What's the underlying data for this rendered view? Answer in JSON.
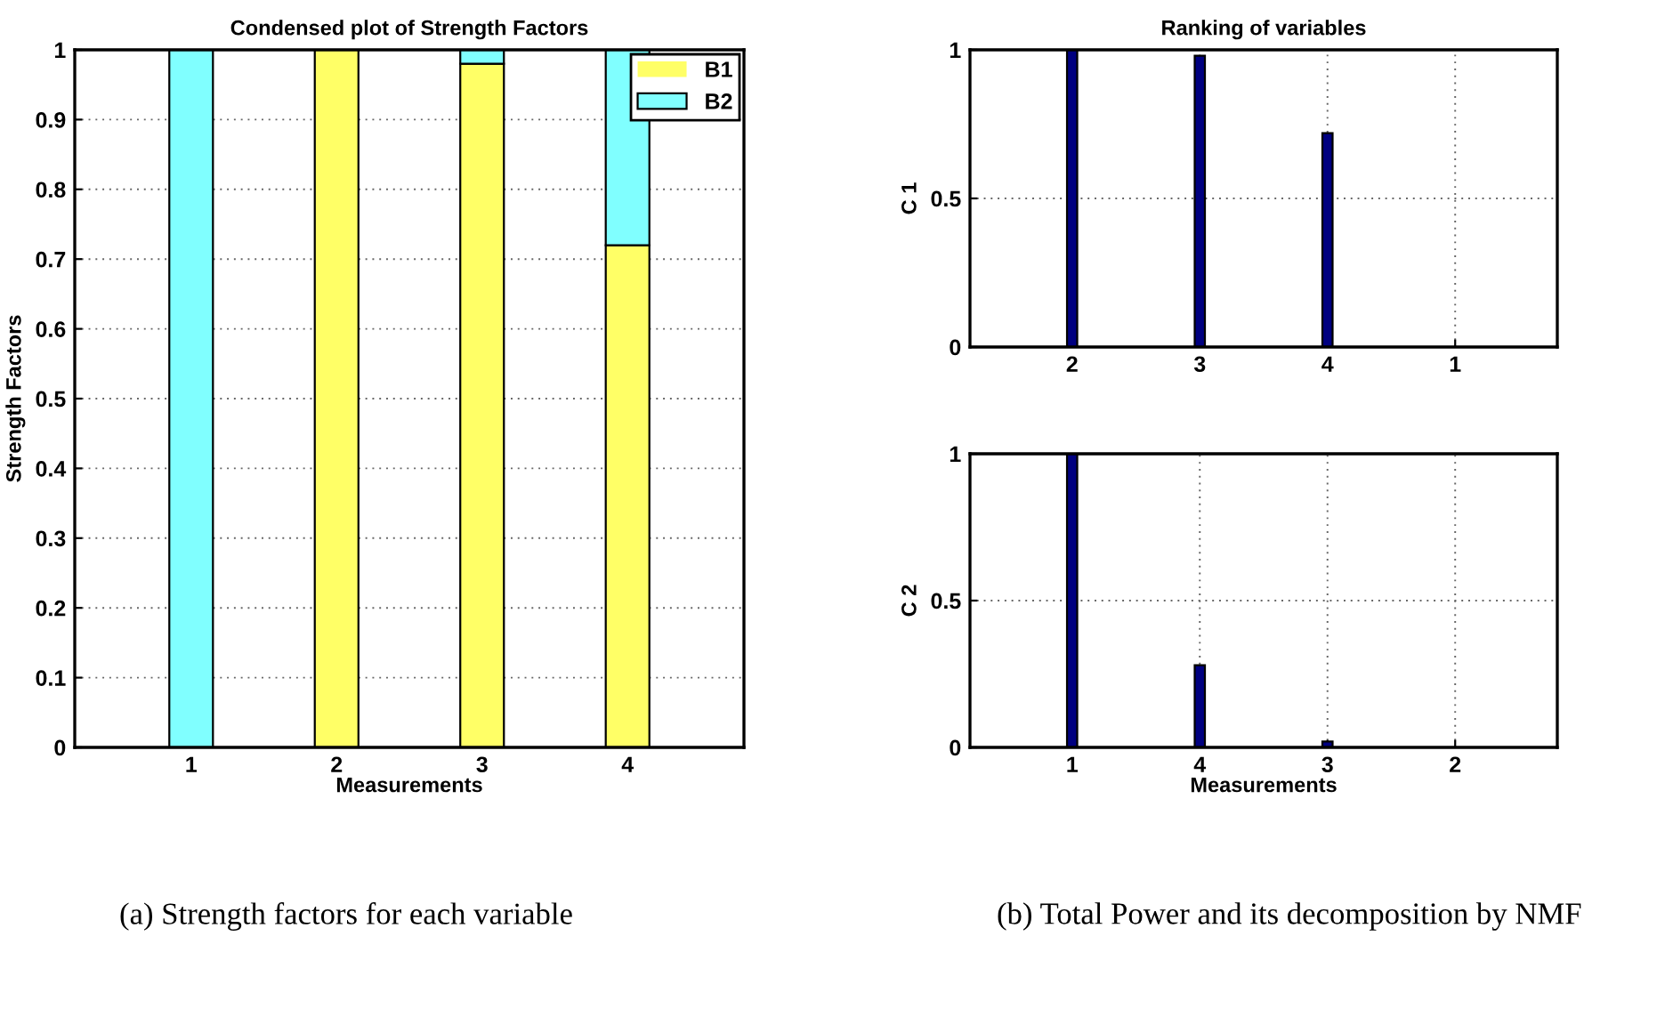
{
  "chart_data": [
    {
      "type": "bar",
      "title": "Condensed plot of Strength Factors",
      "xlabel": "Measurements",
      "ylabel": "Strength Factors",
      "categories": [
        "1",
        "2",
        "3",
        "4"
      ],
      "stacked": true,
      "series": [
        {
          "name": "B1",
          "color": "#ffff66",
          "values": [
            0,
            1,
            0.98,
            0.72
          ]
        },
        {
          "name": "B2",
          "color": "#80ffff",
          "values": [
            1,
            0,
            0.02,
            0.28
          ]
        }
      ],
      "ylim": [
        0,
        1
      ],
      "yticks": [
        0,
        0.1,
        0.2,
        0.3,
        0.4,
        0.5,
        0.6,
        0.7,
        0.8,
        0.9,
        1
      ],
      "grid": "y",
      "legend": "top right",
      "annotations": [
        "(a) Strength factors for each variable"
      ]
    },
    {
      "type": "bar",
      "title": "Ranking of variables",
      "ylabel": "C 1",
      "categories": [
        "2",
        "3",
        "4",
        "1"
      ],
      "series": [
        {
          "color": "#000080",
          "values": [
            1,
            0.98,
            0.72,
            0
          ]
        }
      ],
      "ylim": [
        0,
        1
      ],
      "yticks": [
        0,
        0.5,
        1
      ],
      "grid": true
    },
    {
      "type": "bar",
      "xlabel": "Measurements",
      "ylabel": "C 2",
      "categories": [
        "1",
        "4",
        "3",
        "2"
      ],
      "series": [
        {
          "color": "#000080",
          "values": [
            1,
            0.28,
            0.02,
            0
          ]
        }
      ],
      "ylim": [
        0,
        1
      ],
      "yticks": [
        0,
        0.5,
        1
      ],
      "grid": true,
      "annotations": [
        "(b) Total Power and its decomposition by NMF"
      ]
    }
  ]
}
